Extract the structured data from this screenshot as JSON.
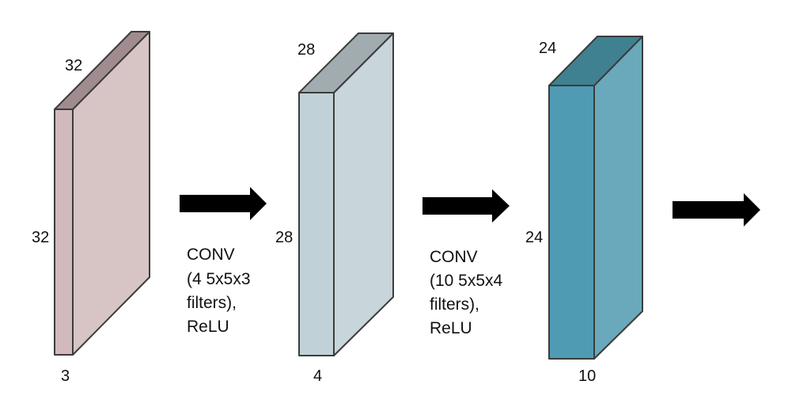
{
  "colors": {
    "volume1": {
      "front": "#d2b9bc",
      "side": "#d7c5c5",
      "top": "#a08c8e"
    },
    "volume2": {
      "front": "#c0d2d8",
      "side": "#c8d5da",
      "top": "#a0acb0"
    },
    "volume3": {
      "front": "#4f9bb3",
      "side": "#69a9bb",
      "top": "#3f8191"
    },
    "edge": "#3c3c3c",
    "arrow": "#000000"
  },
  "volumes": [
    {
      "depth_label": "32",
      "height_label": "32",
      "width_label": "3"
    },
    {
      "depth_label": "28",
      "height_label": "28",
      "width_label": "4"
    },
    {
      "depth_label": "24",
      "height_label": "24",
      "width_label": "10"
    }
  ],
  "operations": [
    {
      "lines": [
        "CONV",
        "(4 5x5x3",
        "filters),",
        "ReLU"
      ]
    },
    {
      "lines": [
        "CONV",
        "(10 5x5x4",
        "filters),",
        "ReLU"
      ]
    }
  ],
  "arrows": [
    {
      "icon": "right-arrow-icon"
    },
    {
      "icon": "right-arrow-icon"
    },
    {
      "icon": "right-arrow-icon"
    }
  ]
}
